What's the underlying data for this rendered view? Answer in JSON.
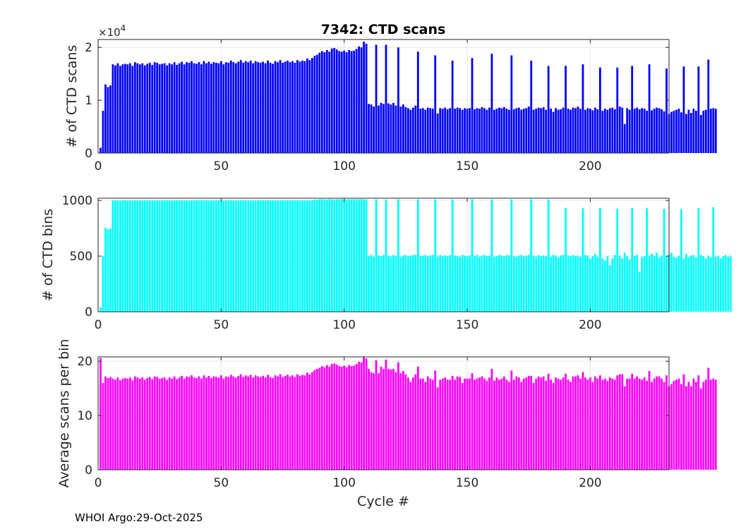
{
  "figure": {
    "title": "7342: CTD scans",
    "xlabel": "Cycle #",
    "footer": "WHOI Argo:29-Oct-2025"
  },
  "chart_data": [
    {
      "type": "bar",
      "title": "7342: CTD scans",
      "xlabel": "",
      "ylabel": "# of CTD scans",
      "y_multiplier_label": "×10^4",
      "color": "#0000ff",
      "xlim": [
        0,
        232
      ],
      "ylim": [
        0,
        2.15
      ],
      "xticks": [
        0,
        50,
        100,
        150,
        200
      ],
      "yticks": [
        0,
        1,
        2
      ],
      "grid": true,
      "x_start": 1,
      "values": [
        0.1,
        0.8,
        1.3,
        1.25,
        1.28,
        1.68,
        1.66,
        1.7,
        1.65,
        1.68,
        1.69,
        1.68,
        1.7,
        1.65,
        1.72,
        1.7,
        1.68,
        1.7,
        1.66,
        1.69,
        1.71,
        1.67,
        1.72,
        1.71,
        1.68,
        1.69,
        1.7,
        1.66,
        1.7,
        1.68,
        1.72,
        1.67,
        1.7,
        1.73,
        1.68,
        1.72,
        1.71,
        1.74,
        1.7,
        1.69,
        1.72,
        1.68,
        1.74,
        1.7,
        1.73,
        1.69,
        1.72,
        1.71,
        1.7,
        1.74,
        1.68,
        1.72,
        1.71,
        1.75,
        1.72,
        1.7,
        1.73,
        1.76,
        1.71,
        1.74,
        1.72,
        1.75,
        1.7,
        1.74,
        1.72,
        1.71,
        1.73,
        1.7,
        1.75,
        1.71,
        1.69,
        1.74,
        1.72,
        1.76,
        1.71,
        1.73,
        1.75,
        1.72,
        1.74,
        1.71,
        1.76,
        1.73,
        1.75,
        1.74,
        1.79,
        1.76,
        1.8,
        1.84,
        1.86,
        1.9,
        1.93,
        1.91,
        1.95,
        1.92,
        1.98,
        1.99,
        1.96,
        1.93,
        1.92,
        1.94,
        1.91,
        1.95,
        1.93,
        1.94,
        1.97,
        2.02,
        2.0,
        2.11,
        2.07,
        0.93,
        0.92,
        0.88,
        2.05,
        0.9,
        0.95,
        0.93,
        2.05,
        0.94,
        0.92,
        0.95,
        0.9,
        2.0,
        0.88,
        0.92,
        0.87,
        0.85,
        0.82,
        0.86,
        0.9,
        1.92,
        0.84,
        0.85,
        0.82,
        0.86,
        0.85,
        0.84,
        1.85,
        0.75,
        0.85,
        0.84,
        0.86,
        0.83,
        0.85,
        1.75,
        0.84,
        0.86,
        0.85,
        0.82,
        0.85,
        0.84,
        0.85,
        1.8,
        0.83,
        0.85,
        0.84,
        0.87,
        0.85,
        0.82,
        0.86,
        1.88,
        0.82,
        0.84,
        0.86,
        0.85,
        0.87,
        0.84,
        0.82,
        1.85,
        0.83,
        0.85,
        0.86,
        0.82,
        0.84,
        0.85,
        0.88,
        1.75,
        0.82,
        0.84,
        0.86,
        0.85,
        0.87,
        0.82,
        1.65,
        0.84,
        0.78,
        0.85,
        0.82,
        0.83,
        0.86,
        1.65,
        0.84,
        0.82,
        0.86,
        0.85,
        0.88,
        0.84,
        1.68,
        0.82,
        0.85,
        0.84,
        0.81,
        0.86,
        0.83,
        1.62,
        0.8,
        0.84,
        0.82,
        0.85,
        0.86,
        0.83,
        1.62,
        0.88,
        0.86,
        0.55,
        0.85,
        0.82,
        1.65,
        0.84,
        0.86,
        0.83,
        0.85,
        0.84,
        0.8,
        1.68,
        0.81,
        0.84,
        0.86,
        0.85,
        0.83,
        0.79,
        1.6,
        0.74,
        0.78,
        0.8,
        0.82,
        0.84,
        0.77,
        1.64,
        0.74,
        0.82,
        0.76,
        0.84,
        0.8,
        1.64,
        0.72,
        0.8,
        0.82,
        1.77,
        0.84,
        0.85,
        0.84
      ]
    },
    {
      "type": "bar",
      "ylabel": "# of CTD bins",
      "color": "#00ffff",
      "xlim": [
        0,
        232
      ],
      "ylim": [
        0,
        1020
      ],
      "xticks": [
        0,
        50,
        100,
        150,
        200
      ],
      "yticks": [
        0,
        500,
        1000
      ],
      "grid": true,
      "x_start": 1,
      "values": [
        40,
        500,
        755,
        740,
        748,
        1000,
        1002,
        1000,
        998,
        1003,
        1002,
        999,
        1001,
        1000,
        1002,
        1000,
        1003,
        999,
        1000,
        1002,
        1001,
        1000,
        999,
        1003,
        1000,
        1002,
        1001,
        1000,
        1002,
        999,
        1001,
        1003,
        1000,
        1001,
        1002,
        1000,
        999,
        1001,
        1003,
        1000,
        1002,
        1001,
        1000,
        1003,
        999,
        1001,
        1002,
        1000,
        1003,
        1001,
        1000,
        1002,
        1001,
        1003,
        1000,
        999,
        1002,
        1001,
        1000,
        1003,
        1002,
        1000,
        1001,
        999,
        1003,
        1000,
        1002,
        1001,
        1000,
        1003,
        1002,
        1000,
        999,
        1001,
        1003,
        1000,
        1002,
        1001,
        1000,
        1003,
        1002,
        1000,
        1001,
        999,
        1003,
        1000,
        1002,
        1008,
        1005,
        1010,
        1012,
        1010,
        1008,
        1012,
        1010,
        1009,
        1011,
        1010,
        1012,
        1010,
        1009,
        1011,
        1010,
        1012,
        1010,
        1010,
        1012,
        1010,
        1010,
        500,
        510,
        495,
        1010,
        505,
        500,
        510,
        1010,
        505,
        498,
        510,
        500,
        1010,
        495,
        505,
        510,
        500,
        505,
        510,
        510,
        1010,
        500,
        505,
        510,
        498,
        505,
        510,
        1010,
        495,
        510,
        500,
        505,
        498,
        510,
        1010,
        505,
        500,
        495,
        510,
        505,
        498,
        505,
        1010,
        500,
        510,
        495,
        505,
        510,
        500,
        505,
        1010,
        495,
        500,
        510,
        505,
        498,
        510,
        505,
        1010,
        500,
        495,
        505,
        510,
        498,
        505,
        510,
        1010,
        505,
        495,
        510,
        500,
        505,
        500,
        1010,
        495,
        510,
        505,
        490,
        505,
        510,
        930,
        505,
        498,
        510,
        500,
        505,
        495,
        930,
        510,
        505,
        480,
        500,
        520,
        495,
        930,
        480,
        460,
        500,
        420,
        480,
        510,
        925,
        505,
        480,
        530,
        500,
        470,
        930,
        500,
        510,
        355,
        490,
        500,
        930,
        505,
        520,
        500,
        530,
        490,
        505,
        925,
        500,
        510,
        530,
        495,
        485,
        505,
        920,
        480,
        520,
        495,
        505,
        510,
        490,
        930,
        510,
        500,
        480,
        505,
        490,
        940,
        495,
        505,
        480,
        500,
        510,
        495,
        505
      ]
    },
    {
      "type": "bar",
      "ylabel": "Average scans per bin",
      "color": "#ff00ff",
      "xlim": [
        0,
        232
      ],
      "ylim": [
        0,
        20.8
      ],
      "xticks": [
        0,
        50,
        100,
        150,
        200
      ],
      "yticks": [
        0,
        10,
        20
      ],
      "grid": true,
      "x_start": 1,
      "values": [
        20.6,
        16,
        17.2,
        16.9,
        17.1,
        16.8,
        16.6,
        17,
        16.5,
        16.8,
        16.9,
        16.8,
        17,
        16.5,
        17.2,
        17,
        16.8,
        17,
        16.6,
        16.9,
        17.1,
        16.7,
        17.2,
        17.1,
        16.8,
        16.9,
        17,
        16.6,
        17,
        16.8,
        17.2,
        16.7,
        17,
        17.3,
        16.8,
        17.2,
        17.1,
        17.4,
        17,
        16.9,
        17.2,
        16.8,
        17.4,
        17,
        17.3,
        16.9,
        17.2,
        17.1,
        17,
        17.4,
        16.8,
        17.2,
        17.1,
        17.5,
        17.2,
        17,
        17.3,
        17.6,
        17.1,
        17.4,
        17.2,
        17.5,
        17,
        17.4,
        17.2,
        17.1,
        17.3,
        17,
        17.5,
        17.1,
        16.9,
        17.4,
        17.2,
        17.6,
        17.1,
        17.3,
        17.5,
        17.2,
        17.4,
        17.1,
        17.6,
        17.3,
        17.5,
        17.4,
        17.9,
        17.6,
        18,
        18.4,
        18.6,
        18.8,
        19.1,
        18.9,
        19.3,
        19,
        19.5,
        19.6,
        19.4,
        19.1,
        19,
        19.2,
        18.9,
        19.3,
        19.1,
        19.2,
        19.5,
        19.9,
        19.8,
        20.8,
        20.5,
        18.6,
        18,
        17.8,
        20.2,
        17.8,
        19,
        18.6,
        20.3,
        18.6,
        18.5,
        18.6,
        18,
        19.8,
        17.8,
        18.2,
        17.6,
        17,
        16.2,
        17,
        17.6,
        19,
        16.8,
        16.8,
        16.2,
        17.2,
        16.8,
        16.6,
        18.3,
        15.2,
        16.6,
        16.8,
        17,
        16.6,
        16.6,
        17.3,
        16.6,
        17.2,
        17.1,
        16,
        16.8,
        16.8,
        16.8,
        17.8,
        16.6,
        16.8,
        17,
        17.2,
        16.8,
        16.4,
        17,
        18.6,
        16.4,
        17,
        16.6,
        16.8,
        17.2,
        16.6,
        16.2,
        18.3,
        16.6,
        17.2,
        17,
        16.2,
        16.8,
        17,
        17.3,
        17.3,
        16,
        16.8,
        17.2,
        17,
        17.2,
        16.4,
        17.7,
        16.6,
        16,
        17,
        16.8,
        16.6,
        17,
        17.7,
        16.6,
        16.2,
        17.2,
        17.2,
        17.4,
        16.8,
        18,
        17,
        16.6,
        17,
        16.2,
        17.2,
        16.8,
        17.4,
        16.6,
        16.8,
        16.4,
        17,
        16.8,
        16.6,
        17.4,
        17.6,
        17.6,
        15.4,
        16.8,
        16.8,
        17.7,
        16.8,
        17.2,
        16.8,
        16.6,
        17,
        16.4,
        18.2,
        16.2,
        16.8,
        17.2,
        17.2,
        16.8,
        16.2,
        17.4,
        15.4,
        15.8,
        16.4,
        16.6,
        16.8,
        15.8,
        17.6,
        15.4,
        16.2,
        15.4,
        16.8,
        16.2,
        17.4,
        15,
        16.2,
        16.6,
        18.8,
        16.6,
        16.8,
        16.6
      ]
    }
  ]
}
